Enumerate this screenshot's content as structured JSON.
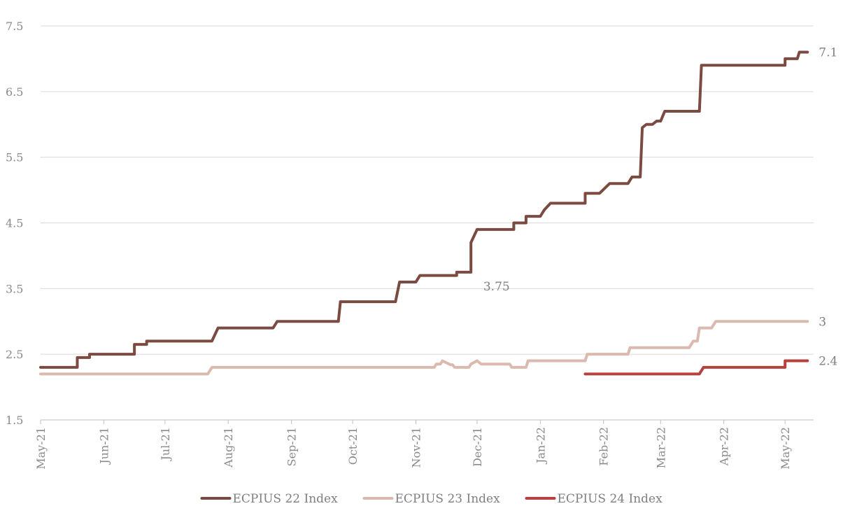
{
  "chart_data": {
    "type": "line",
    "title": "",
    "xlabel": "",
    "ylabel": "",
    "ylim": [
      1.5,
      7.5
    ],
    "yticks": [
      "1.5",
      "2.5",
      "3.5",
      "4.5",
      "5.5",
      "6.5",
      "7.5"
    ],
    "xlim": [
      "2021-05-01",
      "2022-05-15"
    ],
    "xticks": [
      {
        "date": "2021-05-01",
        "label": "May-21"
      },
      {
        "date": "2021-06-01",
        "label": "Jun-21"
      },
      {
        "date": "2021-07-01",
        "label": "Jul-21"
      },
      {
        "date": "2021-08-01",
        "label": "Aug-21"
      },
      {
        "date": "2021-09-01",
        "label": "Sep-21"
      },
      {
        "date": "2021-10-01",
        "label": "Oct-21"
      },
      {
        "date": "2021-11-01",
        "label": "Nov-21"
      },
      {
        "date": "2021-12-01",
        "label": "Dec-21"
      },
      {
        "date": "2022-01-01",
        "label": "Jan-22"
      },
      {
        "date": "2022-02-01",
        "label": "Feb-22"
      },
      {
        "date": "2022-03-01",
        "label": "Mar-22"
      },
      {
        "date": "2022-04-01",
        "label": "Apr-22"
      },
      {
        "date": "2022-05-01",
        "label": "May-22"
      }
    ],
    "grid": true,
    "legend": "bottom",
    "series": [
      {
        "name": "ECPIUS 22 Index",
        "color": "#7b4a40",
        "points": [
          [
            "2021-05-01",
            2.3
          ],
          [
            "2021-05-19",
            2.3
          ],
          [
            "2021-05-19",
            2.45
          ],
          [
            "2021-05-25",
            2.45
          ],
          [
            "2021-05-25",
            2.5
          ],
          [
            "2021-06-16",
            2.5
          ],
          [
            "2021-06-16",
            2.65
          ],
          [
            "2021-06-22",
            2.65
          ],
          [
            "2021-06-22",
            2.7
          ],
          [
            "2021-07-24",
            2.7
          ],
          [
            "2021-07-27",
            2.9
          ],
          [
            "2021-08-23",
            2.9
          ],
          [
            "2021-08-25",
            3.0
          ],
          [
            "2021-09-24",
            3.0
          ],
          [
            "2021-09-25",
            3.3
          ],
          [
            "2021-10-22",
            3.3
          ],
          [
            "2021-10-24",
            3.6
          ],
          [
            "2021-11-01",
            3.6
          ],
          [
            "2021-11-03",
            3.7
          ],
          [
            "2021-11-21",
            3.7
          ],
          [
            "2021-11-21",
            3.75
          ],
          [
            "2021-11-28",
            3.75
          ],
          [
            "2021-11-28",
            4.2
          ],
          [
            "2021-12-01",
            4.4
          ],
          [
            "2021-12-19",
            4.4
          ],
          [
            "2021-12-19",
            4.5
          ],
          [
            "2021-12-25",
            4.5
          ],
          [
            "2021-12-25",
            4.6
          ],
          [
            "2022-01-01",
            4.6
          ],
          [
            "2022-01-03",
            4.7
          ],
          [
            "2022-01-06",
            4.8
          ],
          [
            "2022-01-23",
            4.8
          ],
          [
            "2022-01-23",
            4.95
          ],
          [
            "2022-01-30",
            4.95
          ],
          [
            "2022-02-04",
            5.1
          ],
          [
            "2022-02-13",
            5.1
          ],
          [
            "2022-02-15",
            5.2
          ],
          [
            "2022-02-19",
            5.2
          ],
          [
            "2022-02-20",
            5.95
          ],
          [
            "2022-02-22",
            6.0
          ],
          [
            "2022-02-25",
            6.0
          ],
          [
            "2022-02-27",
            6.05
          ],
          [
            "2022-03-01",
            6.05
          ],
          [
            "2022-03-03",
            6.2
          ],
          [
            "2022-03-20",
            6.2
          ],
          [
            "2022-03-21",
            6.9
          ],
          [
            "2022-05-01",
            6.9
          ],
          [
            "2022-05-01",
            7.0
          ],
          [
            "2022-05-07",
            7.0
          ],
          [
            "2022-05-08",
            7.1
          ],
          [
            "2022-05-12",
            7.1
          ]
        ]
      },
      {
        "name": "ECPIUS 23 Index",
        "color": "#dbb9ae",
        "points": [
          [
            "2021-05-01",
            2.2
          ],
          [
            "2021-07-22",
            2.2
          ],
          [
            "2021-07-24",
            2.3
          ],
          [
            "2021-11-10",
            2.3
          ],
          [
            "2021-11-11",
            2.35
          ],
          [
            "2021-11-13",
            2.35
          ],
          [
            "2021-11-14",
            2.4
          ],
          [
            "2021-11-16",
            2.37
          ],
          [
            "2021-11-18",
            2.34
          ],
          [
            "2021-11-19",
            2.34
          ],
          [
            "2021-11-20",
            2.3
          ],
          [
            "2021-11-27",
            2.3
          ],
          [
            "2021-11-28",
            2.35
          ],
          [
            "2021-12-01",
            2.4
          ],
          [
            "2021-12-03",
            2.35
          ],
          [
            "2021-12-17",
            2.35
          ],
          [
            "2021-12-18",
            2.3
          ],
          [
            "2021-12-25",
            2.3
          ],
          [
            "2021-12-26",
            2.4
          ],
          [
            "2022-01-23",
            2.4
          ],
          [
            "2022-01-24",
            2.5
          ],
          [
            "2022-02-13",
            2.5
          ],
          [
            "2022-02-14",
            2.6
          ],
          [
            "2022-03-15",
            2.6
          ],
          [
            "2022-03-17",
            2.7
          ],
          [
            "2022-03-19",
            2.7
          ],
          [
            "2022-03-20",
            2.9
          ],
          [
            "2022-03-26",
            2.9
          ],
          [
            "2022-03-28",
            3.0
          ],
          [
            "2022-05-12",
            3.0
          ]
        ]
      },
      {
        "name": "ECPIUS 24 Index",
        "color": "#b5423c",
        "points": [
          [
            "2022-01-23",
            2.2
          ],
          [
            "2022-03-20",
            2.2
          ],
          [
            "2022-03-22",
            2.3
          ],
          [
            "2022-05-01",
            2.3
          ],
          [
            "2022-05-01",
            2.4
          ],
          [
            "2022-05-12",
            2.4
          ]
        ]
      }
    ],
    "annotations": [
      {
        "text": "7.1",
        "date": "2022-05-12",
        "y": 7.1,
        "anchor": "end-right"
      },
      {
        "text": "3.75",
        "date": "2021-12-02",
        "y": 3.75,
        "anchor": "below-right"
      },
      {
        "text": "3",
        "date": "2022-05-12",
        "y": 3.0,
        "anchor": "end-right"
      },
      {
        "text": "2.4",
        "date": "2022-05-12",
        "y": 2.4,
        "anchor": "end-right"
      }
    ]
  }
}
